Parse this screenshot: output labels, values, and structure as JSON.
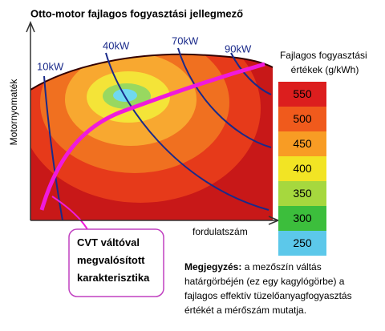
{
  "title": "Otto-motor fajlagos fogyasztási  jellegmező",
  "y_axis_label": "Motornyomaték",
  "x_axis_label": "fordulatszám",
  "power_lines": [
    {
      "label": "10kW"
    },
    {
      "label": "40kW"
    },
    {
      "label": "70kW"
    },
    {
      "label": "90kW"
    }
  ],
  "legend": {
    "title_lines": [
      "Fajlagos fogyasztási",
      "értékek (g/kWh)"
    ],
    "items": [
      {
        "label": "550",
        "color": "#dc1e1e"
      },
      {
        "label": "500",
        "color": "#f05a1c"
      },
      {
        "label": "450",
        "color": "#f89c24"
      },
      {
        "label": "400",
        "color": "#f2e424"
      },
      {
        "label": "350",
        "color": "#a6d83e"
      },
      {
        "label": "300",
        "color": "#3cbe3c"
      },
      {
        "label": "250",
        "color": "#5cc8ea"
      }
    ]
  },
  "callout": {
    "lines": [
      "CVT váltóval",
      "megvalósított",
      "karakterisztika"
    ]
  },
  "note": {
    "bold": "Megjegyzés:",
    "lines": [
      " a mezőszín váltás",
      "határgörbéjén (ez egy kagylógörbe) a",
      "fajlagos effektív tüzelőanyagfogyasztás",
      "értékét a mérőszám mutatja."
    ]
  }
}
